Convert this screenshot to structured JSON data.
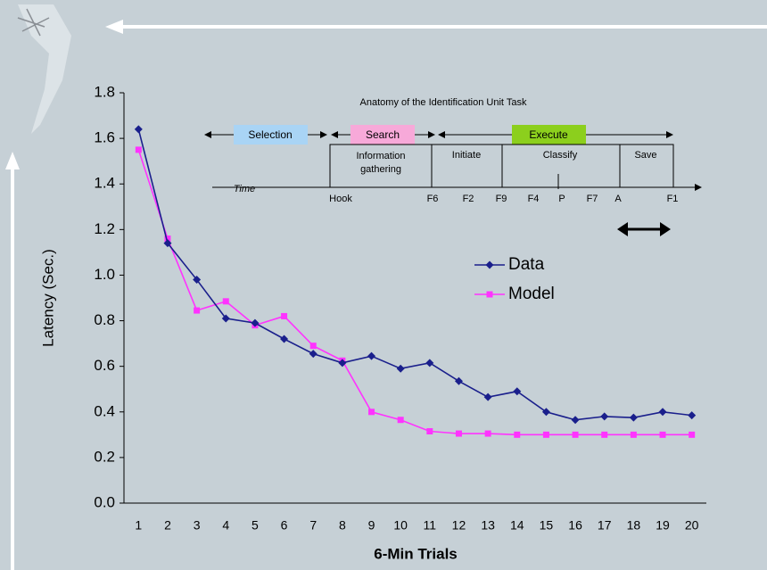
{
  "chart_data": {
    "type": "line",
    "x_label": "6-Min Trials",
    "y_label": "Latency (Sec.)",
    "categories": [
      "1",
      "2",
      "3",
      "4",
      "5",
      "6",
      "7",
      "8",
      "9",
      "10",
      "11",
      "12",
      "13",
      "14",
      "15",
      "16",
      "17",
      "18",
      "19",
      "20"
    ],
    "series": [
      {
        "name": "Data",
        "color": "#1a1f8c",
        "marker": "diamond",
        "values": [
          1.64,
          1.14,
          0.98,
          0.81,
          0.79,
          0.72,
          0.655,
          0.615,
          0.645,
          0.59,
          0.615,
          0.535,
          0.465,
          0.49,
          0.4,
          0.365,
          0.38,
          0.375,
          0.4,
          0.385
        ]
      },
      {
        "name": "Model",
        "color": "#ff33ff",
        "marker": "square",
        "values": [
          1.55,
          1.16,
          0.845,
          0.885,
          0.78,
          0.82,
          0.69,
          0.625,
          0.4,
          0.365,
          0.315,
          0.305,
          0.305,
          0.3,
          0.3,
          0.3,
          0.3,
          0.3,
          0.3,
          0.3
        ]
      }
    ],
    "ylim": [
      0,
      1.8
    ],
    "yticks": [
      {
        "value": 0,
        "label": "0.0"
      },
      0.2,
      0.4,
      0.6,
      0.8,
      {
        "value": 1,
        "label": "1.0"
      },
      1.2,
      1.4,
      1.6,
      1.8
    ],
    "grid": false,
    "legend": "center-right",
    "annotations": {
      "inset_title": "Anatomy of the Identification Unit Task",
      "phases": [
        "Selection",
        "Search",
        "Execute"
      ],
      "steps": [
        "Information",
        "gathering",
        "Initiate",
        "Classify",
        "Save"
      ],
      "time_label": "Time",
      "keys": [
        "Hook",
        "F6",
        "F2",
        "F9",
        "F4",
        "P",
        "F7",
        "A",
        "F1"
      ]
    }
  }
}
